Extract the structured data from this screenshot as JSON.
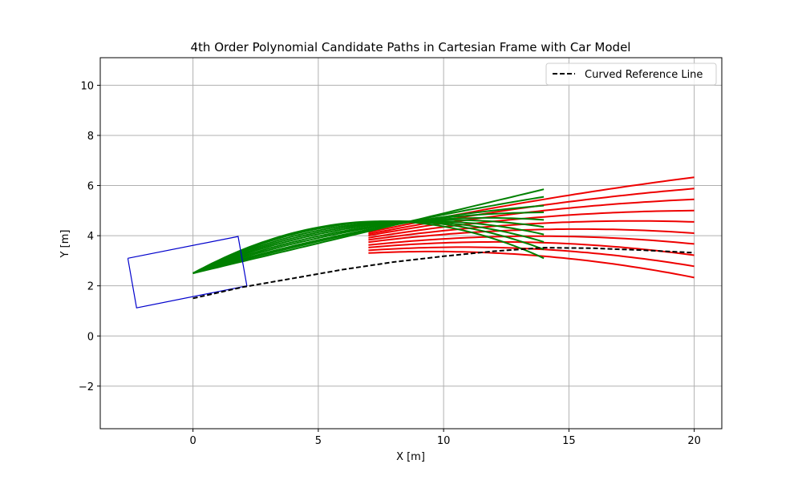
{
  "chart_data": {
    "type": "line",
    "title": "4th Order Polynomial Candidate Paths in Cartesian Frame with Car Model",
    "xlabel": "X [m]",
    "ylabel": "Y [m]",
    "xlim": [
      -3.7,
      21.1
    ],
    "ylim": [
      -3.7,
      11.1
    ],
    "xticks": [
      0,
      5,
      10,
      15,
      20
    ],
    "yticks": [
      -2,
      0,
      2,
      4,
      6,
      8,
      10
    ],
    "xtick_labels": [
      "0",
      "5",
      "10",
      "15",
      "20"
    ],
    "ytick_labels": [
      "−2",
      "0",
      "2",
      "4",
      "6",
      "8",
      "10"
    ],
    "grid": true,
    "legend": {
      "placement": "top-right",
      "entries": [
        "Curved Reference Line"
      ]
    },
    "reference_line": {
      "name": "Curved Reference Line",
      "color": "#000000",
      "style": "dashed",
      "x": [
        0,
        2,
        4,
        6,
        8,
        10,
        12,
        14,
        16,
        18,
        20
      ],
      "y": [
        1.5,
        1.95,
        2.3,
        2.65,
        2.95,
        3.18,
        3.38,
        3.52,
        3.5,
        3.42,
        3.32
      ]
    },
    "car_model": {
      "color": "#0000cc",
      "x": [
        -2.6,
        1.8,
        2.15,
        -2.25,
        -2.6
      ],
      "y": [
        3.1,
        3.97,
        2.0,
        1.12,
        3.1
      ]
    },
    "candidate_paths": {
      "start": [
        0,
        2.5
      ],
      "near_end_x": 14,
      "far_end_x": 20,
      "near_color": "#008000",
      "far_color": "#ee0000",
      "near_end_y": [
        5.85,
        5.55,
        5.2,
        4.93,
        4.63,
        4.35,
        4.05,
        3.75,
        3.45,
        3.1
      ],
      "far_end_y": [
        6.33,
        5.88,
        5.45,
        5.0,
        4.55,
        4.1,
        3.67,
        3.22,
        2.78,
        2.33
      ],
      "cross_y_at_14": [
        5.45,
        5.22,
        5.0,
        4.75,
        4.5,
        4.25,
        3.98,
        3.72,
        3.45,
        3.18
      ]
    },
    "colors": {
      "grid": "#b0b0b0",
      "axes": "#000000"
    }
  }
}
